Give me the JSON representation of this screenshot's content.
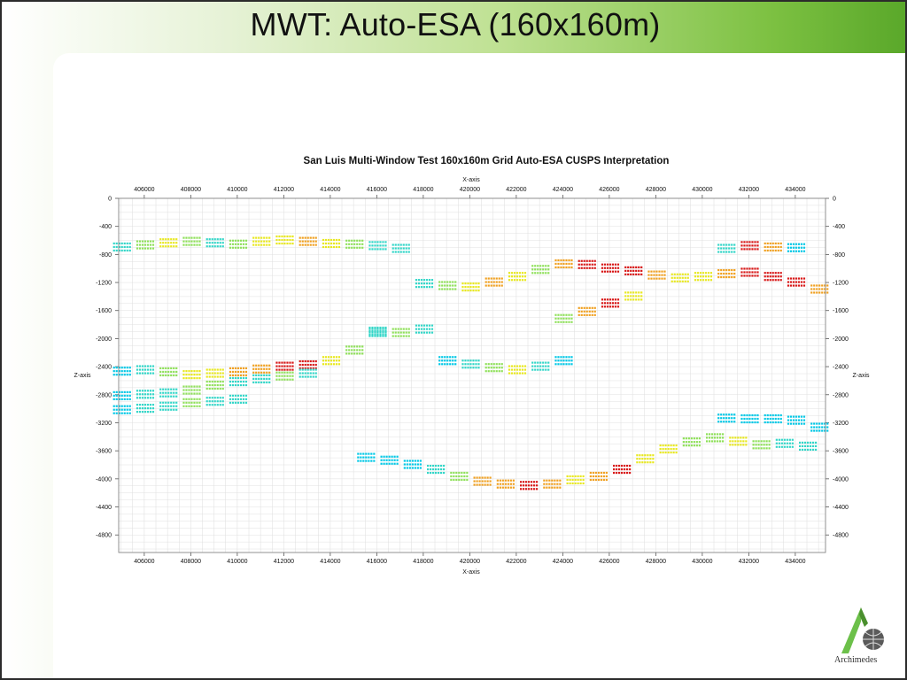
{
  "slide": {
    "title": "MWT: Auto-ESA (160x160m)"
  },
  "logo": {
    "text": "Archimedes",
    "icon": "archimedes-globe-logo"
  },
  "colors": {
    "background_gradient_end": "#5aa82a",
    "grid": "#c8c8c8",
    "scale": [
      "#00c8e6",
      "#33d6c8",
      "#8fe05a",
      "#e8e820",
      "#f0a020",
      "#d81818"
    ]
  },
  "chart_data": {
    "type": "scatter",
    "title": "San Luis Multi-Window Test 160x160m Grid Auto-ESA CUSPS Interpretation",
    "xlabel": "X-axis",
    "ylabel": "Z-axis",
    "xlim": [
      404900,
      435300
    ],
    "ylim": [
      0,
      -5050
    ],
    "x_ticks": [
      "406000",
      "408000",
      "410000",
      "412000",
      "414000",
      "416000",
      "418000",
      "420000",
      "422000",
      "424000",
      "426000",
      "428000",
      "430000",
      "432000",
      "434000"
    ],
    "y_ticks": [
      "0",
      "-400",
      "-800",
      "-1200",
      "-1600",
      "-2000",
      "-2400",
      "-2800",
      "-3200",
      "-3600",
      "-4000",
      "-4400",
      "-4800"
    ],
    "x_tick_values": [
      406000,
      408000,
      410000,
      412000,
      414000,
      416000,
      418000,
      420000,
      422000,
      424000,
      426000,
      428000,
      430000,
      432000,
      434000
    ],
    "y_tick_values": [
      0,
      -400,
      -800,
      -1200,
      -1600,
      -2000,
      -2400,
      -2800,
      -3200,
      -3600,
      -4000,
      -4400,
      -4800
    ],
    "grid": true,
    "legend": "none",
    "series": [
      {
        "points": [
          [
            405000,
            -680,
            1
          ],
          [
            406000,
            -650,
            2
          ],
          [
            407000,
            -620,
            3
          ],
          [
            408000,
            -600,
            2
          ],
          [
            409000,
            -620,
            1
          ],
          [
            410000,
            -640,
            2
          ],
          [
            411000,
            -600,
            3
          ],
          [
            412000,
            -580,
            3
          ],
          [
            413000,
            -600,
            4
          ],
          [
            414000,
            -630,
            3
          ],
          [
            415000,
            -640,
            2
          ],
          [
            416000,
            -660,
            1
          ],
          [
            417000,
            -700,
            1
          ]
        ]
      },
      {
        "points": [
          [
            405000,
            -2450,
            0
          ],
          [
            406000,
            -2430,
            1
          ],
          [
            407000,
            -2460,
            2
          ],
          [
            408000,
            -2500,
            3
          ],
          [
            409000,
            -2480,
            3
          ],
          [
            410000,
            -2460,
            4
          ],
          [
            411000,
            -2420,
            4
          ],
          [
            412000,
            -2380,
            5
          ],
          [
            413000,
            -2360,
            5
          ],
          [
            414000,
            -2300,
            3
          ],
          [
            415000,
            -2150,
            2
          ],
          [
            416000,
            -1900,
            1
          ]
        ]
      },
      {
        "points": [
          [
            405000,
            -2800,
            0
          ],
          [
            406000,
            -2780,
            1
          ],
          [
            407000,
            -2760,
            1
          ],
          [
            408000,
            -2720,
            2
          ],
          [
            409000,
            -2650,
            2
          ],
          [
            410000,
            -2600,
            1
          ],
          [
            411000,
            -2560,
            1
          ],
          [
            412000,
            -2520,
            2
          ],
          [
            413000,
            -2480,
            1
          ]
        ]
      },
      {
        "points": [
          [
            405000,
            -3000,
            0
          ],
          [
            406000,
            -2980,
            1
          ],
          [
            407000,
            -2950,
            1
          ],
          [
            408000,
            -2900,
            2
          ],
          [
            409000,
            -2880,
            1
          ],
          [
            410000,
            -2850,
            1
          ]
        ]
      },
      {
        "points": [
          [
            418000,
            -1200,
            1
          ],
          [
            419000,
            -1230,
            2
          ],
          [
            420000,
            -1250,
            3
          ],
          [
            421000,
            -1180,
            4
          ],
          [
            422000,
            -1100,
            3
          ],
          [
            423000,
            -1000,
            2
          ],
          [
            424000,
            -920,
            4
          ],
          [
            425000,
            -930,
            5
          ],
          [
            426000,
            -980,
            5
          ],
          [
            427000,
            -1020,
            5
          ],
          [
            428000,
            -1080,
            4
          ],
          [
            429000,
            -1120,
            3
          ],
          [
            430000,
            -1100,
            3
          ],
          [
            431000,
            -1060,
            4
          ],
          [
            432000,
            -1040,
            5
          ],
          [
            433000,
            -1100,
            5
          ],
          [
            434000,
            -1180,
            5
          ],
          [
            435000,
            -1280,
            4
          ]
        ]
      },
      {
        "points": [
          [
            424000,
            -1700,
            2
          ],
          [
            425000,
            -1600,
            4
          ],
          [
            426000,
            -1480,
            5
          ],
          [
            427000,
            -1380,
            3
          ]
        ]
      },
      {
        "points": [
          [
            416000,
            -1880,
            1
          ],
          [
            417000,
            -1900,
            2
          ],
          [
            418000,
            -1850,
            1
          ]
        ]
      },
      {
        "points": [
          [
            419000,
            -2300,
            0
          ],
          [
            420000,
            -2350,
            1
          ],
          [
            421000,
            -2400,
            2
          ],
          [
            422000,
            -2430,
            3
          ],
          [
            423000,
            -2380,
            1
          ],
          [
            424000,
            -2300,
            0
          ]
        ]
      },
      {
        "points": [
          [
            415500,
            -3680,
            0
          ],
          [
            416500,
            -3720,
            0
          ],
          [
            417500,
            -3780,
            0
          ],
          [
            418500,
            -3850,
            1
          ],
          [
            419500,
            -3950,
            2
          ],
          [
            420500,
            -4020,
            4
          ],
          [
            421500,
            -4060,
            4
          ],
          [
            422500,
            -4080,
            5
          ],
          [
            423500,
            -4060,
            4
          ],
          [
            424500,
            -4000,
            3
          ],
          [
            425500,
            -3950,
            4
          ],
          [
            426500,
            -3850,
            5
          ],
          [
            427500,
            -3700,
            3
          ],
          [
            428500,
            -3560,
            3
          ],
          [
            429500,
            -3460,
            2
          ],
          [
            430500,
            -3400,
            2
          ],
          [
            431500,
            -3450,
            3
          ],
          [
            432500,
            -3500,
            2
          ],
          [
            433500,
            -3480,
            1
          ],
          [
            434500,
            -3520,
            1
          ]
        ]
      },
      {
        "points": [
          [
            431000,
            -3120,
            0
          ],
          [
            432000,
            -3130,
            0
          ],
          [
            433000,
            -3130,
            0
          ],
          [
            434000,
            -3150,
            0
          ],
          [
            435000,
            -3250,
            0
          ]
        ]
      },
      {
        "points": [
          [
            431000,
            -700,
            1
          ],
          [
            432000,
            -660,
            5
          ],
          [
            433000,
            -680,
            4
          ],
          [
            434000,
            -690,
            0
          ]
        ]
      }
    ]
  }
}
